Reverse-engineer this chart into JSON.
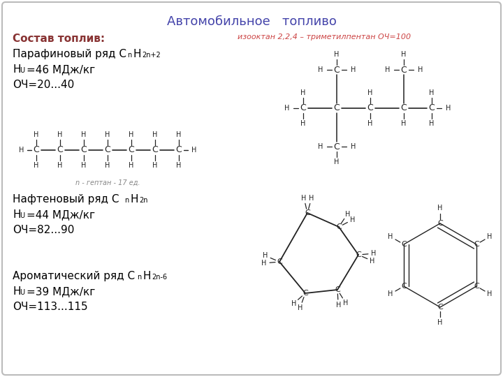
{
  "title": "Автомобильное   топливо",
  "title_color": "#4444aa",
  "bg_color": "#ffffff",
  "border_color": "#bbbbbb",
  "isooctane_label": "изооктан 2,2,4 – триметилпентан ОЧ=100",
  "isooctane_label_color": "#cc4444",
  "n_heptane_label": "n - гептан - 17 ед.",
  "line_color": "#222222",
  "font_color": "#222222"
}
